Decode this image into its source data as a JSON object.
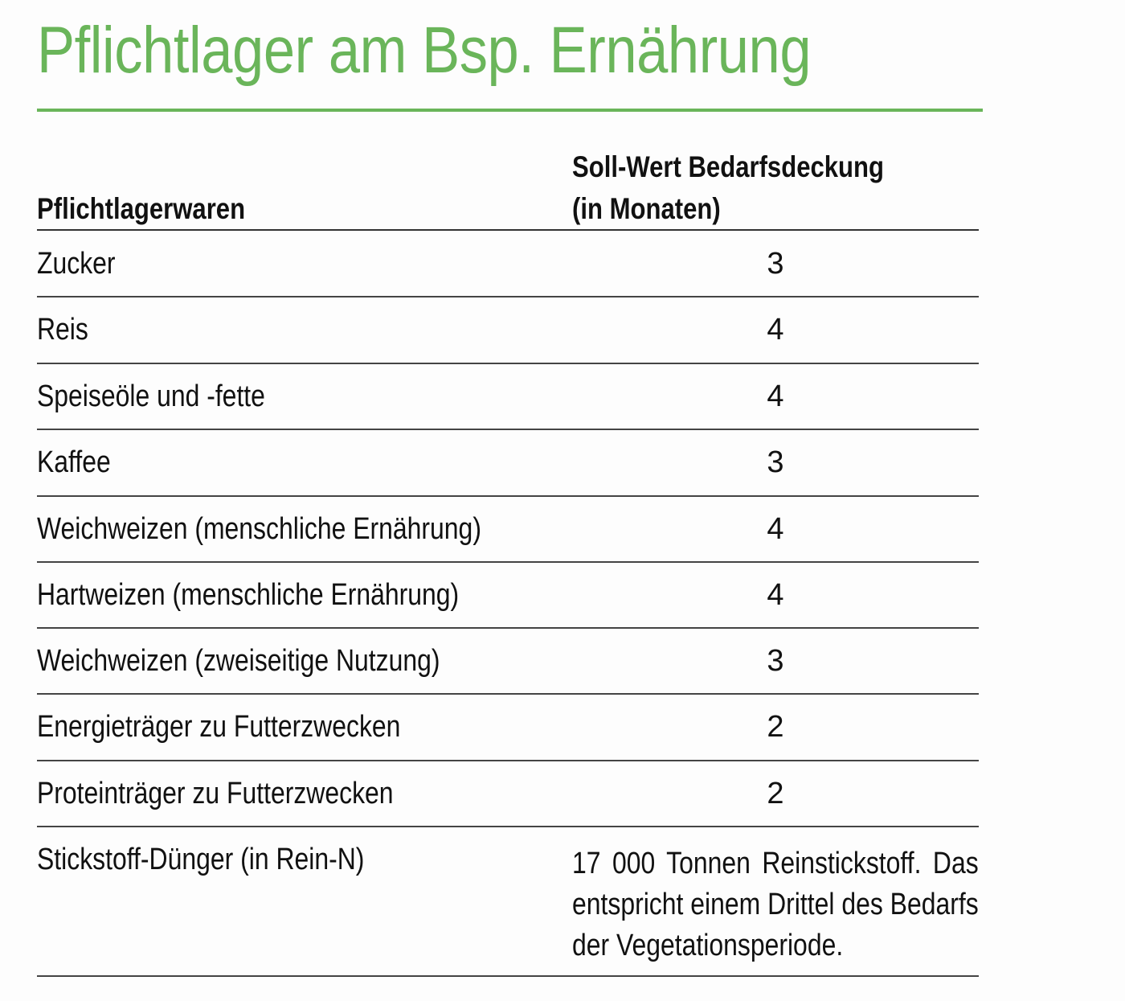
{
  "title": "Pflichtlager am Bsp. Ernährung",
  "colors": {
    "accent": "#6ab55a",
    "text": "#111111"
  },
  "table": {
    "headers": {
      "item": "Pflichtlagerwaren",
      "value_line1": "Soll-Wert Bedarfsdeckung",
      "value_line2": "(in Monaten)"
    },
    "rows": [
      {
        "item": "Zucker",
        "value": "3"
      },
      {
        "item": "Reis",
        "value": "4"
      },
      {
        "item": "Speiseöle und -fette",
        "value": "4"
      },
      {
        "item": "Kaffee",
        "value": "3"
      },
      {
        "item": "Weichweizen (menschliche Ernährung)",
        "value": "4"
      },
      {
        "item": "Hartweizen (menschliche Ernährung)",
        "value": "4"
      },
      {
        "item": "Weichweizen (zweiseitige Nutzung)",
        "value": "3"
      },
      {
        "item": "Energieträger zu Futterzwecken",
        "value": "2"
      },
      {
        "item": "Proteinträger zu Futterzwecken",
        "value": "2"
      },
      {
        "item": "Stickstoff-Dünger (in Rein-N)",
        "value": "17 000 Tonnen Reinstickstoff. Das entspricht einem Drittel des Bedarfs der Vegetationsperiode."
      }
    ]
  }
}
